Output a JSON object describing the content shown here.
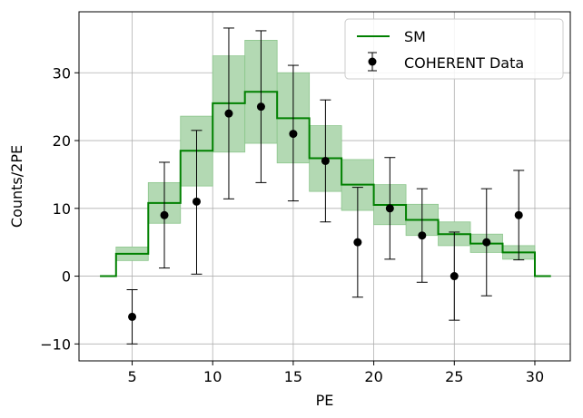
{
  "chart_data": {
    "type": "step",
    "xlabel": "PE",
    "ylabel": "Counts/2PE",
    "xlim": [
      1.7,
      32.2
    ],
    "ylim": [
      -12.5,
      39
    ],
    "xticks": [
      5,
      10,
      15,
      20,
      25,
      30
    ],
    "yticks": [
      -10,
      0,
      10,
      20,
      30
    ],
    "xtick_labels": [
      "5",
      "10",
      "15",
      "20",
      "25",
      "30"
    ],
    "ytick_labels": [
      "−10",
      "0",
      "10",
      "20",
      "30"
    ],
    "grid": true,
    "legend_position": "top-right",
    "colors": {
      "sm_line": "#008000",
      "sm_band": "#b3d9b3",
      "sm_band_edge": "#8cc68c",
      "data_marker": "#000000",
      "grid": "#b0b0b0"
    },
    "sm": {
      "name": "SM",
      "bins": [
        {
          "x0": 3,
          "x1": 4,
          "value": 0,
          "lo": 0,
          "hi": 0
        },
        {
          "x0": 4,
          "x1": 6,
          "value": 3.3,
          "lo": 2.3,
          "hi": 4.3
        },
        {
          "x0": 6,
          "x1": 8,
          "value": 10.8,
          "lo": 7.8,
          "hi": 13.8
        },
        {
          "x0": 8,
          "x1": 10,
          "value": 18.5,
          "lo": 13.3,
          "hi": 23.6
        },
        {
          "x0": 10,
          "x1": 12,
          "value": 25.5,
          "lo": 18.3,
          "hi": 32.5
        },
        {
          "x0": 12,
          "x1": 14,
          "value": 27.2,
          "lo": 19.6,
          "hi": 34.8
        },
        {
          "x0": 14,
          "x1": 16,
          "value": 23.3,
          "lo": 16.7,
          "hi": 30.0
        },
        {
          "x0": 16,
          "x1": 18,
          "value": 17.4,
          "lo": 12.5,
          "hi": 22.2
        },
        {
          "x0": 18,
          "x1": 20,
          "value": 13.5,
          "lo": 9.7,
          "hi": 17.2
        },
        {
          "x0": 20,
          "x1": 22,
          "value": 10.5,
          "lo": 7.6,
          "hi": 13.5
        },
        {
          "x0": 22,
          "x1": 24,
          "value": 8.3,
          "lo": 6.0,
          "hi": 10.6
        },
        {
          "x0": 24,
          "x1": 26,
          "value": 6.2,
          "lo": 4.5,
          "hi": 8.0
        },
        {
          "x0": 26,
          "x1": 28,
          "value": 4.8,
          "lo": 3.5,
          "hi": 6.2
        },
        {
          "x0": 28,
          "x1": 30,
          "value": 3.5,
          "lo": 2.5,
          "hi": 4.5
        },
        {
          "x0": 30,
          "x1": 31,
          "value": 0,
          "lo": 0,
          "hi": 0
        }
      ]
    },
    "data": {
      "name": "COHERENT Data",
      "points": [
        {
          "x": 5,
          "y": -6,
          "ylo": -10,
          "yhi": -2
        },
        {
          "x": 7,
          "y": 9,
          "ylo": 1.2,
          "yhi": 16.8
        },
        {
          "x": 9,
          "y": 11,
          "ylo": 0.3,
          "yhi": 21.5
        },
        {
          "x": 11,
          "y": 24,
          "ylo": 11.4,
          "yhi": 36.6
        },
        {
          "x": 13,
          "y": 25,
          "ylo": 13.8,
          "yhi": 36.2
        },
        {
          "x": 15,
          "y": 21,
          "ylo": 11.1,
          "yhi": 31.1
        },
        {
          "x": 17,
          "y": 17,
          "ylo": 8.0,
          "yhi": 26.0
        },
        {
          "x": 19,
          "y": 5,
          "ylo": -3.1,
          "yhi": 13.1
        },
        {
          "x": 21,
          "y": 10,
          "ylo": 2.5,
          "yhi": 17.5
        },
        {
          "x": 23,
          "y": 6,
          "ylo": -0.9,
          "yhi": 12.9
        },
        {
          "x": 25,
          "y": 0,
          "ylo": -6.5,
          "yhi": 6.5
        },
        {
          "x": 27,
          "y": 5,
          "ylo": -2.9,
          "yhi": 12.9
        },
        {
          "x": 29,
          "y": 9,
          "ylo": 2.4,
          "yhi": 15.6
        }
      ]
    }
  }
}
